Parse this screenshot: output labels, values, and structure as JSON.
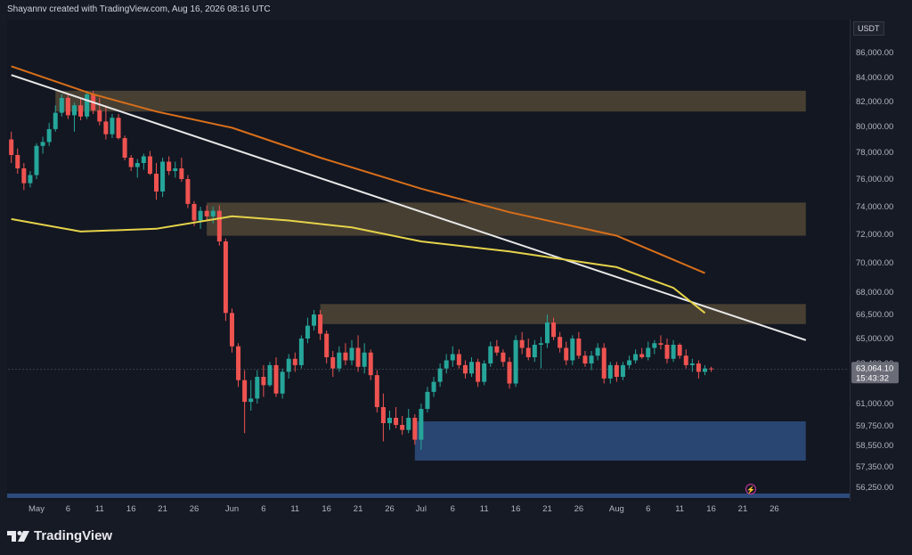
{
  "header": {
    "text": "Shayannv created with TradingView.com, Aug 16, 2026 08:16 UTC"
  },
  "footer": {
    "logo_text": "TradingView"
  },
  "colors": {
    "bg": "#131722",
    "up": "#26a69a",
    "down": "#ef5350",
    "zone": "#6b5a3e",
    "demand": "#2c4a7a",
    "ma_long": "#d86f1a",
    "ma_short": "#e6d34a",
    "trendline": "#e8e8e8"
  },
  "chart_data": {
    "type": "candlestick",
    "symbol_currency": "USDT",
    "price_ticks": [
      "86,000.00",
      "84,000.00",
      "82,000.00",
      "80,000.00",
      "78,000.00",
      "76,000.00",
      "74,000.00",
      "72,000.00",
      "70,000.00",
      "68,000.00",
      "66,500.00",
      "65,000.00",
      "63,400.00",
      "61,000.00",
      "59,750.00",
      "58,550.00",
      "57,350.00",
      "56,250.00"
    ],
    "price_values": [
      86000,
      84000,
      82000,
      80000,
      78000,
      76000,
      74000,
      72000,
      70000,
      68000,
      66500,
      65000,
      63400,
      61000,
      59750,
      58550,
      57350,
      56250
    ],
    "time_ticks": [
      {
        "label": "May",
        "date": "2026-05-01"
      },
      {
        "label": "6",
        "date": "2026-05-06"
      },
      {
        "label": "11",
        "date": "2026-05-11"
      },
      {
        "label": "16",
        "date": "2026-05-16"
      },
      {
        "label": "21",
        "date": "2026-05-21"
      },
      {
        "label": "26",
        "date": "2026-05-26"
      },
      {
        "label": "Jun",
        "date": "2026-06-01"
      },
      {
        "label": "6",
        "date": "2026-06-06"
      },
      {
        "label": "11",
        "date": "2026-06-11"
      },
      {
        "label": "16",
        "date": "2026-06-16"
      },
      {
        "label": "21",
        "date": "2026-06-21"
      },
      {
        "label": "26",
        "date": "2026-06-26"
      },
      {
        "label": "Jul",
        "date": "2026-07-01"
      },
      {
        "label": "6",
        "date": "2026-07-06"
      },
      {
        "label": "11",
        "date": "2026-07-11"
      },
      {
        "label": "16",
        "date": "2026-07-16"
      },
      {
        "label": "21",
        "date": "2026-07-21"
      },
      {
        "label": "26",
        "date": "2026-07-26"
      },
      {
        "label": "Aug",
        "date": "2026-08-01"
      },
      {
        "label": "6",
        "date": "2026-08-06"
      },
      {
        "label": "11",
        "date": "2026-08-11"
      },
      {
        "label": "16",
        "date": "2026-08-16"
      },
      {
        "label": "21",
        "date": "2026-08-21"
      },
      {
        "label": "26",
        "date": "2026-08-26"
      }
    ],
    "candles": [
      {
        "date": "2026-04-27",
        "o": 79000,
        "h": 79600,
        "l": 77200,
        "c": 77800
      },
      {
        "date": "2026-04-28",
        "o": 77800,
        "h": 78300,
        "l": 76400,
        "c": 76800
      },
      {
        "date": "2026-04-29",
        "o": 76800,
        "h": 77200,
        "l": 75200,
        "c": 75700
      },
      {
        "date": "2026-04-30",
        "o": 75700,
        "h": 76600,
        "l": 75400,
        "c": 76300
      },
      {
        "date": "2026-05-01",
        "o": 76300,
        "h": 78700,
        "l": 76000,
        "c": 78500
      },
      {
        "date": "2026-05-02",
        "o": 78500,
        "h": 79200,
        "l": 77900,
        "c": 78800
      },
      {
        "date": "2026-05-03",
        "o": 78800,
        "h": 80300,
        "l": 78500,
        "c": 79800
      },
      {
        "date": "2026-05-04",
        "o": 79800,
        "h": 81700,
        "l": 79600,
        "c": 81100
      },
      {
        "date": "2026-05-05",
        "o": 81100,
        "h": 82600,
        "l": 80800,
        "c": 82300
      },
      {
        "date": "2026-05-06",
        "o": 82300,
        "h": 82600,
        "l": 80600,
        "c": 80900
      },
      {
        "date": "2026-05-07",
        "o": 80900,
        "h": 81900,
        "l": 79600,
        "c": 81700
      },
      {
        "date": "2026-05-08",
        "o": 81700,
        "h": 82300,
        "l": 80500,
        "c": 80800
      },
      {
        "date": "2026-05-09",
        "o": 80800,
        "h": 82900,
        "l": 80600,
        "c": 82600
      },
      {
        "date": "2026-05-10",
        "o": 82600,
        "h": 82900,
        "l": 81000,
        "c": 81300
      },
      {
        "date": "2026-05-11",
        "o": 81300,
        "h": 82300,
        "l": 80100,
        "c": 80400
      },
      {
        "date": "2026-05-12",
        "o": 80400,
        "h": 81700,
        "l": 79000,
        "c": 79400
      },
      {
        "date": "2026-05-13",
        "o": 79400,
        "h": 81000,
        "l": 79100,
        "c": 80700
      },
      {
        "date": "2026-05-14",
        "o": 80700,
        "h": 81000,
        "l": 79000,
        "c": 79100
      },
      {
        "date": "2026-05-15",
        "o": 79100,
        "h": 79300,
        "l": 77400,
        "c": 77600
      },
      {
        "date": "2026-05-16",
        "o": 77600,
        "h": 77800,
        "l": 76600,
        "c": 76900
      },
      {
        "date": "2026-05-17",
        "o": 76900,
        "h": 77500,
        "l": 76100,
        "c": 77200
      },
      {
        "date": "2026-05-18",
        "o": 77200,
        "h": 77900,
        "l": 76700,
        "c": 77700
      },
      {
        "date": "2026-05-19",
        "o": 77700,
        "h": 78100,
        "l": 76300,
        "c": 76400
      },
      {
        "date": "2026-05-20",
        "o": 76400,
        "h": 77200,
        "l": 74500,
        "c": 75100
      },
      {
        "date": "2026-05-21",
        "o": 75100,
        "h": 77600,
        "l": 74700,
        "c": 77300
      },
      {
        "date": "2026-05-22",
        "o": 77300,
        "h": 77700,
        "l": 76300,
        "c": 76600
      },
      {
        "date": "2026-05-23",
        "o": 76600,
        "h": 77300,
        "l": 76100,
        "c": 76800
      },
      {
        "date": "2026-05-24",
        "o": 76800,
        "h": 77600,
        "l": 75800,
        "c": 76000
      },
      {
        "date": "2026-05-25",
        "o": 76000,
        "h": 76300,
        "l": 73900,
        "c": 74200
      },
      {
        "date": "2026-05-26",
        "o": 74200,
        "h": 74400,
        "l": 72600,
        "c": 73000
      },
      {
        "date": "2026-05-27",
        "o": 73000,
        "h": 74000,
        "l": 72400,
        "c": 73700
      },
      {
        "date": "2026-05-28",
        "o": 73700,
        "h": 74100,
        "l": 73000,
        "c": 73300
      },
      {
        "date": "2026-05-29",
        "o": 73300,
        "h": 74000,
        "l": 72800,
        "c": 73700
      },
      {
        "date": "2026-05-30",
        "o": 73700,
        "h": 74100,
        "l": 71200,
        "c": 71500
      },
      {
        "date": "2026-05-31",
        "o": 71500,
        "h": 71700,
        "l": 66100,
        "c": 66600
      },
      {
        "date": "2026-06-01",
        "o": 66600,
        "h": 66900,
        "l": 64100,
        "c": 64500
      },
      {
        "date": "2026-06-02",
        "o": 64500,
        "h": 64700,
        "l": 62000,
        "c": 62400
      },
      {
        "date": "2026-06-03",
        "o": 62400,
        "h": 63000,
        "l": 59300,
        "c": 61100
      },
      {
        "date": "2026-06-04",
        "o": 61100,
        "h": 62400,
        "l": 60600,
        "c": 61300
      },
      {
        "date": "2026-06-05",
        "o": 61300,
        "h": 63000,
        "l": 61000,
        "c": 62600
      },
      {
        "date": "2026-06-06",
        "o": 62600,
        "h": 63300,
        "l": 61400,
        "c": 62100
      },
      {
        "date": "2026-06-07",
        "o": 62100,
        "h": 63500,
        "l": 62000,
        "c": 63300
      },
      {
        "date": "2026-06-08",
        "o": 63300,
        "h": 63800,
        "l": 61400,
        "c": 61600
      },
      {
        "date": "2026-06-09",
        "o": 61600,
        "h": 63100,
        "l": 61300,
        "c": 62900
      },
      {
        "date": "2026-06-10",
        "o": 62900,
        "h": 64000,
        "l": 62500,
        "c": 63700
      },
      {
        "date": "2026-06-11",
        "o": 63700,
        "h": 64100,
        "l": 62900,
        "c": 63300
      },
      {
        "date": "2026-06-12",
        "o": 63300,
        "h": 65200,
        "l": 63100,
        "c": 65000
      },
      {
        "date": "2026-06-13",
        "o": 65000,
        "h": 66300,
        "l": 64700,
        "c": 65800
      },
      {
        "date": "2026-06-14",
        "o": 65800,
        "h": 66800,
        "l": 65500,
        "c": 66500
      },
      {
        "date": "2026-06-15",
        "o": 66500,
        "h": 66800,
        "l": 64900,
        "c": 65300
      },
      {
        "date": "2026-06-16",
        "o": 65300,
        "h": 65500,
        "l": 63400,
        "c": 63800
      },
      {
        "date": "2026-06-17",
        "o": 63800,
        "h": 64200,
        "l": 62600,
        "c": 63100
      },
      {
        "date": "2026-06-18",
        "o": 63100,
        "h": 64500,
        "l": 62900,
        "c": 64100
      },
      {
        "date": "2026-06-19",
        "o": 64100,
        "h": 64700,
        "l": 63300,
        "c": 63600
      },
      {
        "date": "2026-06-20",
        "o": 63600,
        "h": 64900,
        "l": 63300,
        "c": 64400
      },
      {
        "date": "2026-06-21",
        "o": 64400,
        "h": 65200,
        "l": 62900,
        "c": 63200
      },
      {
        "date": "2026-06-22",
        "o": 63200,
        "h": 64700,
        "l": 62800,
        "c": 64100
      },
      {
        "date": "2026-06-23",
        "o": 64100,
        "h": 64300,
        "l": 62400,
        "c": 62700
      },
      {
        "date": "2026-06-24",
        "o": 62700,
        "h": 63000,
        "l": 60500,
        "c": 60800
      },
      {
        "date": "2026-06-25",
        "o": 60800,
        "h": 61600,
        "l": 58800,
        "c": 59900
      },
      {
        "date": "2026-06-26",
        "o": 59900,
        "h": 60600,
        "l": 59500,
        "c": 60200
      },
      {
        "date": "2026-06-27",
        "o": 60200,
        "h": 60800,
        "l": 59600,
        "c": 59800
      },
      {
        "date": "2026-06-28",
        "o": 59800,
        "h": 60300,
        "l": 59200,
        "c": 59500
      },
      {
        "date": "2026-06-29",
        "o": 59500,
        "h": 60700,
        "l": 59300,
        "c": 60200
      },
      {
        "date": "2026-06-30",
        "o": 60200,
        "h": 60400,
        "l": 58600,
        "c": 58900
      },
      {
        "date": "2026-07-01",
        "o": 58900,
        "h": 61000,
        "l": 58300,
        "c": 60700
      },
      {
        "date": "2026-07-02",
        "o": 60700,
        "h": 62000,
        "l": 60500,
        "c": 61700
      },
      {
        "date": "2026-07-03",
        "o": 61700,
        "h": 62600,
        "l": 61400,
        "c": 62300
      },
      {
        "date": "2026-07-04",
        "o": 62300,
        "h": 63400,
        "l": 62000,
        "c": 63100
      },
      {
        "date": "2026-07-05",
        "o": 63100,
        "h": 64000,
        "l": 62800,
        "c": 63600
      },
      {
        "date": "2026-07-06",
        "o": 63600,
        "h": 64500,
        "l": 63200,
        "c": 64000
      },
      {
        "date": "2026-07-07",
        "o": 64000,
        "h": 64300,
        "l": 63100,
        "c": 63300
      },
      {
        "date": "2026-07-08",
        "o": 63300,
        "h": 63600,
        "l": 62500,
        "c": 62800
      },
      {
        "date": "2026-07-09",
        "o": 62800,
        "h": 63800,
        "l": 62600,
        "c": 63500
      },
      {
        "date": "2026-07-10",
        "o": 63500,
        "h": 63700,
        "l": 62000,
        "c": 62300
      },
      {
        "date": "2026-07-11",
        "o": 62300,
        "h": 63600,
        "l": 62100,
        "c": 63400
      },
      {
        "date": "2026-07-12",
        "o": 63400,
        "h": 64800,
        "l": 63200,
        "c": 64500
      },
      {
        "date": "2026-07-13",
        "o": 64500,
        "h": 64900,
        "l": 63900,
        "c": 64100
      },
      {
        "date": "2026-07-14",
        "o": 64100,
        "h": 64300,
        "l": 63200,
        "c": 63500
      },
      {
        "date": "2026-07-15",
        "o": 63500,
        "h": 63800,
        "l": 61900,
        "c": 62200
      },
      {
        "date": "2026-07-16",
        "o": 62200,
        "h": 65200,
        "l": 62000,
        "c": 64900
      },
      {
        "date": "2026-07-17",
        "o": 64900,
        "h": 65400,
        "l": 64000,
        "c": 64400
      },
      {
        "date": "2026-07-18",
        "o": 64400,
        "h": 65000,
        "l": 63600,
        "c": 63800
      },
      {
        "date": "2026-07-19",
        "o": 63800,
        "h": 64900,
        "l": 63500,
        "c": 64600
      },
      {
        "date": "2026-07-20",
        "o": 64600,
        "h": 65100,
        "l": 63100,
        "c": 64700
      },
      {
        "date": "2026-07-21",
        "o": 64700,
        "h": 66500,
        "l": 64400,
        "c": 66000
      },
      {
        "date": "2026-07-22",
        "o": 66000,
        "h": 66300,
        "l": 64900,
        "c": 65100
      },
      {
        "date": "2026-07-23",
        "o": 65100,
        "h": 65400,
        "l": 64100,
        "c": 64400
      },
      {
        "date": "2026-07-24",
        "o": 64400,
        "h": 64800,
        "l": 63300,
        "c": 63600
      },
      {
        "date": "2026-07-25",
        "o": 63600,
        "h": 65200,
        "l": 63300,
        "c": 65000
      },
      {
        "date": "2026-07-26",
        "o": 65000,
        "h": 65400,
        "l": 63700,
        "c": 63900
      },
      {
        "date": "2026-07-27",
        "o": 63900,
        "h": 64200,
        "l": 63200,
        "c": 63400
      },
      {
        "date": "2026-07-28",
        "o": 63400,
        "h": 64200,
        "l": 63000,
        "c": 63900
      },
      {
        "date": "2026-07-29",
        "o": 63900,
        "h": 64700,
        "l": 63600,
        "c": 64400
      },
      {
        "date": "2026-07-30",
        "o": 64400,
        "h": 64700,
        "l": 62200,
        "c": 62500
      },
      {
        "date": "2026-07-31",
        "o": 62500,
        "h": 63500,
        "l": 62200,
        "c": 63300
      },
      {
        "date": "2026-08-01",
        "o": 63300,
        "h": 63500,
        "l": 62300,
        "c": 62600
      },
      {
        "date": "2026-08-02",
        "o": 62600,
        "h": 63500,
        "l": 62400,
        "c": 63300
      },
      {
        "date": "2026-08-03",
        "o": 63300,
        "h": 63900,
        "l": 63100,
        "c": 63600
      },
      {
        "date": "2026-08-04",
        "o": 63600,
        "h": 64300,
        "l": 63400,
        "c": 64000
      },
      {
        "date": "2026-08-05",
        "o": 64000,
        "h": 64400,
        "l": 63700,
        "c": 63800
      },
      {
        "date": "2026-08-06",
        "o": 63800,
        "h": 64800,
        "l": 63600,
        "c": 64400
      },
      {
        "date": "2026-08-07",
        "o": 64400,
        "h": 64900,
        "l": 64000,
        "c": 64700
      },
      {
        "date": "2026-08-08",
        "o": 64700,
        "h": 65200,
        "l": 64300,
        "c": 64600
      },
      {
        "date": "2026-08-09",
        "o": 64600,
        "h": 65000,
        "l": 63400,
        "c": 63700
      },
      {
        "date": "2026-08-10",
        "o": 63700,
        "h": 64900,
        "l": 63500,
        "c": 64600
      },
      {
        "date": "2026-08-11",
        "o": 64600,
        "h": 64700,
        "l": 63700,
        "c": 63900
      },
      {
        "date": "2026-08-12",
        "o": 63900,
        "h": 64300,
        "l": 63100,
        "c": 63300
      },
      {
        "date": "2026-08-13",
        "o": 63300,
        "h": 63700,
        "l": 62900,
        "c": 63400
      },
      {
        "date": "2026-08-14",
        "o": 63400,
        "h": 63600,
        "l": 62500,
        "c": 62900
      },
      {
        "date": "2026-08-15",
        "o": 62900,
        "h": 63300,
        "l": 62700,
        "c": 63100
      },
      {
        "date": "2026-08-16",
        "o": 63100,
        "h": 63200,
        "l": 62900,
        "c": 63064
      }
    ],
    "last_price_label": "63,064.10",
    "countdown_label": "15:43:32",
    "zones": [
      {
        "type": "supply",
        "from_date": "2026-05-04",
        "to_date": "2026-08-31",
        "top": 82900,
        "bottom": 81200
      },
      {
        "type": "supply",
        "from_date": "2026-05-28",
        "to_date": "2026-08-31",
        "top": 74300,
        "bottom": 71900
      },
      {
        "type": "supply",
        "from_date": "2026-06-15",
        "to_date": "2026-08-31",
        "top": 67200,
        "bottom": 65900
      },
      {
        "type": "demand",
        "from_date": "2026-06-30",
        "to_date": "2026-08-31",
        "top": 60000,
        "bottom": 57700
      }
    ],
    "lines": [
      {
        "name": "",
        "style": "trendline",
        "points": [
          {
            "date": "2026-04-27",
            "price": 84200
          },
          {
            "date": "2026-08-31",
            "price": 64900
          }
        ]
      },
      {
        "name": "",
        "style": "ma_long",
        "points": [
          {
            "date": "2026-04-27",
            "price": 84900
          },
          {
            "date": "2026-05-10",
            "price": 82600
          },
          {
            "date": "2026-05-20",
            "price": 81200
          },
          {
            "date": "2026-06-01",
            "price": 79900
          },
          {
            "date": "2026-06-15",
            "price": 77600
          },
          {
            "date": "2026-07-01",
            "price": 75300
          },
          {
            "date": "2026-07-15",
            "price": 73600
          },
          {
            "date": "2026-08-01",
            "price": 71900
          },
          {
            "date": "2026-08-15",
            "price": 69300
          }
        ]
      },
      {
        "name": "",
        "style": "ma_short",
        "points": [
          {
            "date": "2026-04-27",
            "price": 73100
          },
          {
            "date": "2026-05-08",
            "price": 72200
          },
          {
            "date": "2026-05-20",
            "price": 72400
          },
          {
            "date": "2026-06-01",
            "price": 73300
          },
          {
            "date": "2026-06-10",
            "price": 73000
          },
          {
            "date": "2026-06-20",
            "price": 72500
          },
          {
            "date": "2026-07-01",
            "price": 71500
          },
          {
            "date": "2026-07-15",
            "price": 70800
          },
          {
            "date": "2026-08-01",
            "price": 69700
          },
          {
            "date": "2026-08-10",
            "price": 68300
          },
          {
            "date": "2026-08-15",
            "price": 66600
          }
        ]
      }
    ]
  }
}
